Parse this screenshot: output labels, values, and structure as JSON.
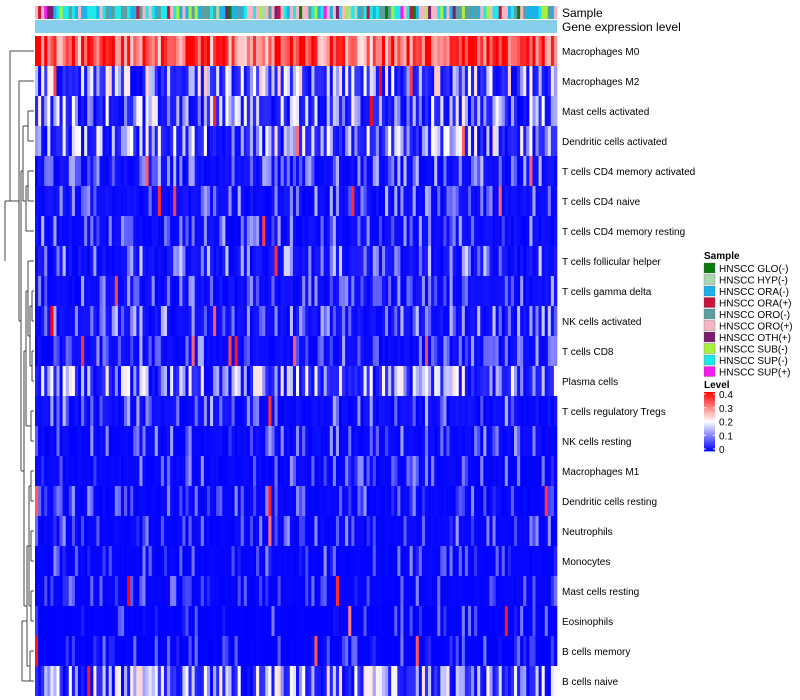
{
  "chart_data": {
    "type": "heatmap",
    "annotation_labels": [
      "Sample",
      "Gene expression level"
    ],
    "rows": [
      "Macrophages M0",
      "Macrophages M2",
      "Mast cells activated",
      "Dendritic cells activated",
      "T cells CD4 memory activated",
      "T cells CD4 naive",
      "T cells CD4 memory resting",
      "T cells follicular helper",
      "T cells gamma delta",
      "NK cells activated",
      "T cells CD8",
      "Plasma cells",
      "T cells regulatory  Tregs",
      "NK cells resting",
      "Macrophages M1",
      "Dendritic cells resting",
      "Neutrophils",
      "Monocytes",
      "Mast cells resting",
      "Eosinophils",
      "B cells memory",
      "B cells naive"
    ],
    "row_mean_levels": [
      0.32,
      0.12,
      0.09,
      0.1,
      0.06,
      0.06,
      0.05,
      0.08,
      0.06,
      0.07,
      0.05,
      0.1,
      0.06,
      0.04,
      0.03,
      0.03,
      0.03,
      0.02,
      0.02,
      0.01,
      0.01,
      0.11
    ],
    "column_count": 170,
    "sample_legend": {
      "title": "Sample",
      "items": [
        {
          "label": "HNSCC GLO(-)",
          "color": "#0d7a0d"
        },
        {
          "label": "HNSCC HYP(-)",
          "color": "#a8d8b0"
        },
        {
          "label": "HNSCC ORA(-)",
          "color": "#1ab2e8"
        },
        {
          "label": "HNSCC ORA(+)",
          "color": "#c8143c"
        },
        {
          "label": "HNSCC ORO(-)",
          "color": "#5f9ea0"
        },
        {
          "label": "HNSCC ORO(+)",
          "color": "#f4b6c2"
        },
        {
          "label": "HNSCC OTH(+)",
          "color": "#7b1c6e"
        },
        {
          "label": "HNSCC SUB(-)",
          "color": "#a8f03c"
        },
        {
          "label": "HNSCC SUP(-)",
          "color": "#1ee8e8"
        },
        {
          "label": "HNSCC SUP(+)",
          "color": "#f21cf2"
        }
      ]
    },
    "level_legend": {
      "title": "Level",
      "ticks": [
        "0.4",
        "0.3",
        "0.2",
        "0.1",
        "0"
      ],
      "min": 0,
      "max": 0.4,
      "color_low": "#0000ff",
      "color_mid": "#ffffff",
      "color_high": "#ff0000"
    },
    "gene_expression_bar_color": "#87ceeb"
  }
}
